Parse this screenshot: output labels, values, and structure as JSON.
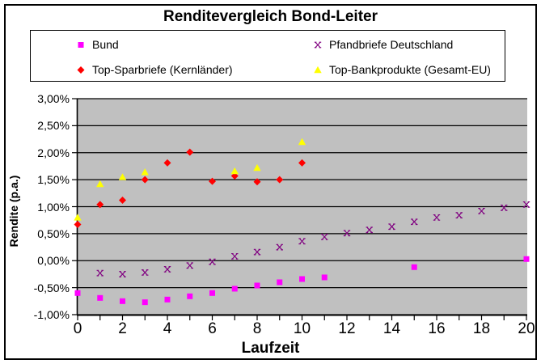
{
  "chart_data": {
    "type": "scatter",
    "title": "Renditevergleich Bond-Leiter",
    "xlabel": "Laufzeit",
    "ylabel": "Rendite (p.a.)",
    "xlim": [
      0,
      20
    ],
    "ylim": [
      -1.0,
      3.0
    ],
    "y_step": 0.5,
    "x_major_step": 2,
    "x_minor_step": 1,
    "grid": "horizontal",
    "legend_position": "top",
    "plot_bg": "#C0C0C0",
    "axis_color": "#000000",
    "background": "#FFFFFF",
    "ytick_labels": [
      "3,00%",
      "2,50%",
      "2,00%",
      "1,50%",
      "1,00%",
      "0,50%",
      "0,00%",
      "-0,50%",
      "-1,00%"
    ],
    "xtick_labels": [
      "0",
      "2",
      "4",
      "6",
      "8",
      "10",
      "12",
      "14",
      "16",
      "18",
      "20"
    ],
    "series": [
      {
        "name": "Bund",
        "color": "#FF00FF",
        "marker": "square",
        "points": [
          [
            0,
            -0.6
          ],
          [
            1,
            -0.69
          ],
          [
            2,
            -0.75
          ],
          [
            3,
            -0.77
          ],
          [
            4,
            -0.72
          ],
          [
            5,
            -0.66
          ],
          [
            6,
            -0.6
          ],
          [
            7,
            -0.52
          ],
          [
            8,
            -0.46
          ],
          [
            9,
            -0.4
          ],
          [
            10,
            -0.34
          ],
          [
            11,
            -0.31
          ],
          [
            15,
            -0.12
          ],
          [
            20,
            0.03
          ]
        ]
      },
      {
        "name": "Pfandbriefe Deutschland",
        "color": "#800080",
        "marker": "x",
        "points": [
          [
            1,
            -0.23
          ],
          [
            2,
            -0.25
          ],
          [
            3,
            -0.22
          ],
          [
            4,
            -0.16
          ],
          [
            5,
            -0.09
          ],
          [
            6,
            -0.02
          ],
          [
            7,
            0.08
          ],
          [
            8,
            0.16
          ],
          [
            9,
            0.25
          ],
          [
            10,
            0.36
          ],
          [
            11,
            0.44
          ],
          [
            12,
            0.51
          ],
          [
            13,
            0.57
          ],
          [
            14,
            0.63
          ],
          [
            15,
            0.72
          ],
          [
            16,
            0.8
          ],
          [
            17,
            0.84
          ],
          [
            18,
            0.92
          ],
          [
            19,
            0.98
          ],
          [
            20,
            1.04
          ]
        ]
      },
      {
        "name": "Top-Sparbriefe (Kernländer)",
        "color": "#FF0000",
        "marker": "diamond",
        "points": [
          [
            0,
            0.67
          ],
          [
            1,
            1.04
          ],
          [
            2,
            1.12
          ],
          [
            3,
            1.5
          ],
          [
            4,
            1.81
          ],
          [
            5,
            2.01
          ],
          [
            6,
            1.47
          ],
          [
            7,
            1.57
          ],
          [
            8,
            1.46
          ],
          [
            9,
            1.5
          ],
          [
            10,
            1.81
          ]
        ]
      },
      {
        "name": "Top-Bankprodukte (Gesamt-EU)",
        "color": "#FFFF00",
        "marker": "triangle",
        "points": [
          [
            0,
            0.8
          ],
          [
            1,
            1.42
          ],
          [
            2,
            1.55
          ],
          [
            3,
            1.64
          ],
          [
            7,
            1.66
          ],
          [
            8,
            1.72
          ],
          [
            10,
            2.2
          ]
        ]
      }
    ]
  }
}
